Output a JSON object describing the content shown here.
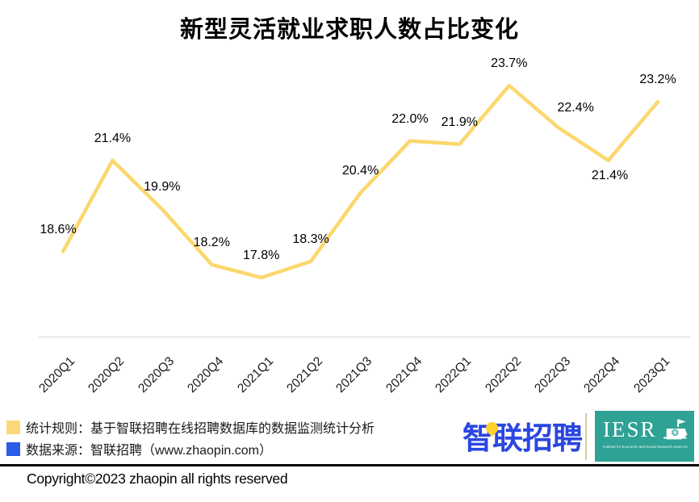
{
  "title": "新型灵活就业求职人数占比变化",
  "chart_data": {
    "type": "line",
    "title": "新型灵活就业求职人数占比变化",
    "categories": [
      "2020Q1",
      "2020Q2",
      "2020Q3",
      "2020Q4",
      "2021Q1",
      "2021Q2",
      "2021Q3",
      "2021Q4",
      "2022Q1",
      "2022Q2",
      "2022Q3",
      "2022Q4",
      "2023Q1"
    ],
    "values": [
      18.6,
      21.4,
      19.9,
      18.2,
      17.8,
      18.3,
      20.4,
      22.0,
      21.9,
      23.7,
      22.4,
      21.4,
      23.2
    ],
    "labels": [
      "18.6%",
      "21.4%",
      "19.9%",
      "18.2%",
      "17.8%",
      "18.3%",
      "20.4%",
      "22.0%",
      "21.9%",
      "23.7%",
      "22.4%",
      "21.4%",
      "23.2%"
    ],
    "unit": "%",
    "line_color": "#fbd76d",
    "xlabel": "",
    "ylabel": "",
    "y_min_observed": 17.8,
    "y_max_observed": 23.7,
    "grid": false,
    "legend_position": "none",
    "x_axis_line_color": "#d9d9d9"
  },
  "footer": {
    "legend": [
      {
        "swatch_color": "#fbd878",
        "text": "统计规则：基于智联招聘在线招聘数据库的数据监测统计分析"
      },
      {
        "swatch_color": "#2b5ce6",
        "text": "数据来源：智联招聘（www.zhaopin.com）"
      }
    ],
    "zhaopin_logo_text": "智联招聘",
    "iesr_logo": {
      "acronym": "IESR",
      "subtext": "Institute for Economic and Social Research  Jinan University"
    },
    "copyright": "Copyright©2023 zhaopin all rights reserved"
  }
}
